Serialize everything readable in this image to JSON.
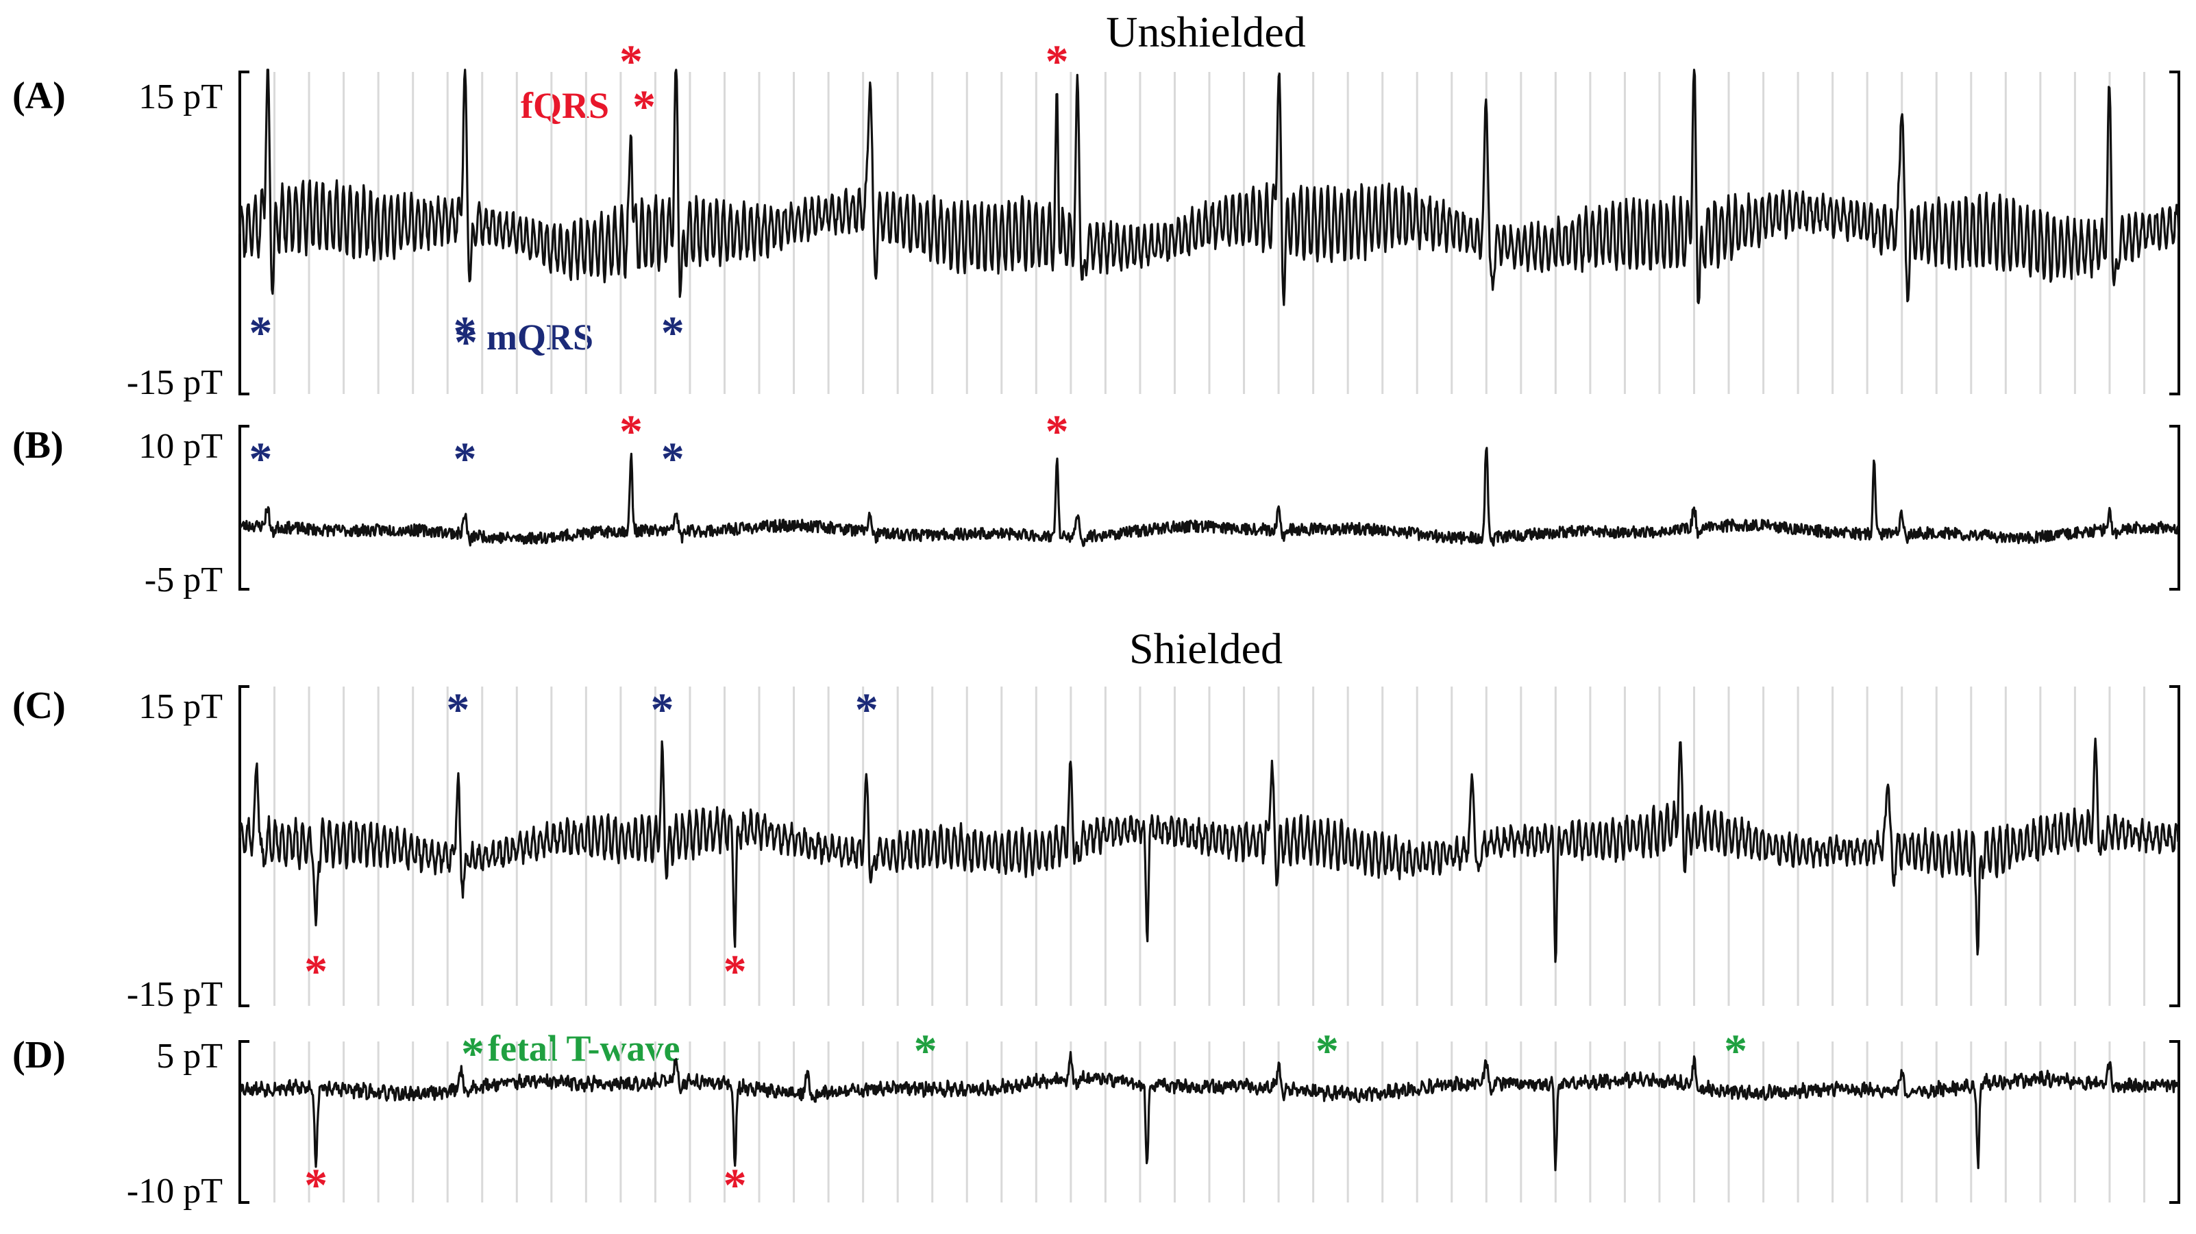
{
  "colors": {
    "trace": "#111111",
    "axis": "#000000",
    "grid": "#d9d9d9",
    "fetal_qrs": "#e8172b",
    "maternal_qrs": "#1b2a78",
    "fetal_t_wave": "#1fa040"
  },
  "chart_data": [
    {
      "type": "line",
      "panel": "(A)",
      "title": "Unshielded",
      "unit": "pT",
      "ylim": [
        -15,
        15
      ],
      "ytick_labels": [
        "15 pT",
        "-15 pT"
      ],
      "x_domain": [
        0,
        28
      ],
      "grid": "vertical",
      "grid_lines": 56,
      "series": [
        {
          "baseline": 0.2,
          "ripple_amp": 3.2,
          "noise": 0.6,
          "wander_amp": 1.2,
          "mqrs_times": [
            0.4,
            3.25,
            6.3,
            9.1,
            12.1,
            15.0,
            18.0,
            21.0,
            24.0,
            27.0
          ],
          "mqrs_amp": 14,
          "fqrs_times": [
            5.65,
            11.8
          ],
          "fqrs_amp": 12
        }
      ],
      "annotations": [
        {
          "text": "fQRS",
          "class": "fetal_qrs"
        },
        {
          "text": "mQRS",
          "class": "maternal_qrs"
        }
      ],
      "fqrs_markers": [
        5.65,
        11.8
      ],
      "mqrs_markers": [
        0.3,
        3.25,
        6.25
      ]
    },
    {
      "type": "line",
      "panel": "(B)",
      "unit": "pT",
      "ylim": [
        -5,
        10
      ],
      "ytick_labels": [
        "10 pT",
        "-5 pT"
      ],
      "x_domain": [
        0,
        28
      ],
      "grid": "off",
      "series": [
        {
          "baseline": 0.3,
          "ripple_amp": 0.0,
          "noise": 0.55,
          "wander_amp": 0.4,
          "mqrs_times": [
            0.4,
            3.25,
            6.3,
            9.1,
            12.1,
            15.0,
            18.0,
            21.0,
            24.0,
            27.0
          ],
          "mqrs_amp": 1.8,
          "fqrs_times": [
            5.65,
            11.8,
            18.0,
            23.6
          ],
          "fqrs_amp": 7
        }
      ],
      "fqrs_markers": [
        5.65,
        11.8
      ],
      "mqrs_markers": [
        0.3,
        3.25,
        6.25
      ]
    },
    {
      "type": "line",
      "panel": "(C)",
      "title": "Shielded",
      "unit": "pT",
      "ylim": [
        -15,
        15
      ],
      "ytick_labels": [
        "15 pT",
        "-15 pT"
      ],
      "x_domain": [
        0,
        28
      ],
      "grid": "vertical",
      "grid_lines": 56,
      "series": [
        {
          "baseline": 0.3,
          "ripple_amp": 2.0,
          "noise": 0.6,
          "wander_amp": 1.0,
          "mqrs_times": [
            0.25,
            3.15,
            6.1,
            9.05,
            12.0,
            14.9,
            17.8,
            20.8,
            23.8,
            26.8
          ],
          "mqrs_amp": 7,
          "fqrs_times": [
            1.1,
            7.15,
            13.1,
            19.0,
            25.1
          ],
          "fqrs_amp": -10
        }
      ],
      "fqrs_markers": [
        1.1,
        7.15
      ],
      "mqrs_markers": [
        3.15,
        6.1,
        9.05
      ]
    },
    {
      "type": "line",
      "panel": "(D)",
      "unit": "pT",
      "ylim": [
        -10,
        5
      ],
      "ytick_labels": [
        "5 pT",
        "-10 pT"
      ],
      "x_domain": [
        0,
        28
      ],
      "grid": "vertical",
      "grid_lines": 56,
      "series": [
        {
          "baseline": 0.8,
          "ripple_amp": 0.3,
          "noise": 0.55,
          "wander_amp": 0.5,
          "mqrs_times": [
            3.2,
            6.3,
            8.2,
            12.0,
            15.0,
            18.0,
            21.0,
            24.0,
            27.0
          ],
          "mqrs_amp": 2.0,
          "fqrs_times": [
            1.1,
            7.15,
            13.1,
            19.0,
            25.1
          ],
          "fqrs_amp": -7.5
        }
      ],
      "annotations": [
        {
          "text": "fetal T-wave",
          "class": "fetal_t_wave"
        }
      ],
      "fqrs_markers": [
        1.1,
        7.15
      ],
      "twave_markers": [
        9.9,
        15.7,
        21.6
      ]
    }
  ]
}
